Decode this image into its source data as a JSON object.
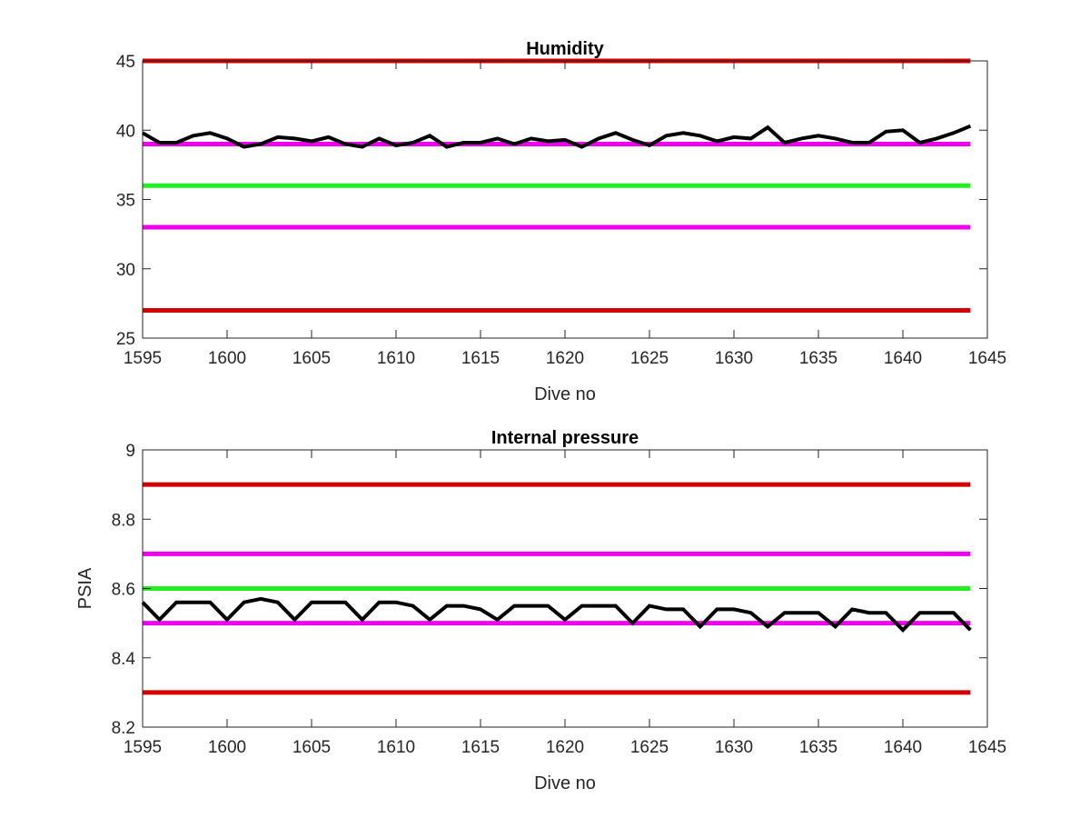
{
  "chart_data": [
    {
      "type": "line",
      "title": "Humidity",
      "xlabel": "Dive no",
      "ylabel": "",
      "xlim": [
        1595,
        1645
      ],
      "ylim": [
        25,
        45
      ],
      "xticks": [
        1595,
        1600,
        1605,
        1610,
        1615,
        1620,
        1625,
        1630,
        1635,
        1640,
        1645
      ],
      "yticks": [
        25,
        30,
        35,
        40,
        45
      ],
      "grid": false,
      "reference_lines": [
        {
          "y": 45,
          "color": "#d40000"
        },
        {
          "y": 39,
          "color": "#ee00ee"
        },
        {
          "y": 36,
          "color": "#22ee22"
        },
        {
          "y": 33,
          "color": "#ee00ee"
        },
        {
          "y": 27,
          "color": "#d40000"
        }
      ],
      "series": [
        {
          "color": "#000000",
          "x": [
            1595,
            1596,
            1597,
            1598,
            1599,
            1600,
            1601,
            1602,
            1603,
            1604,
            1605,
            1606,
            1607,
            1608,
            1609,
            1610,
            1611,
            1612,
            1613,
            1614,
            1615,
            1616,
            1617,
            1618,
            1619,
            1620,
            1621,
            1622,
            1623,
            1624,
            1625,
            1626,
            1627,
            1628,
            1629,
            1630,
            1631,
            1632,
            1633,
            1634,
            1635,
            1636,
            1637,
            1638,
            1639,
            1640,
            1641,
            1642,
            1643,
            1644
          ],
          "y": [
            39.8,
            39.1,
            39.1,
            39.6,
            39.8,
            39.4,
            38.8,
            39.0,
            39.5,
            39.4,
            39.2,
            39.5,
            39.0,
            38.8,
            39.4,
            38.9,
            39.1,
            39.6,
            38.8,
            39.1,
            39.1,
            39.4,
            39.0,
            39.4,
            39.2,
            39.3,
            38.8,
            39.4,
            39.8,
            39.3,
            38.9,
            39.6,
            39.8,
            39.6,
            39.2,
            39.5,
            39.4,
            40.2,
            39.1,
            39.4,
            39.6,
            39.4,
            39.1,
            39.1,
            39.9,
            40.0,
            39.1,
            39.4,
            39.8,
            40.3
          ]
        }
      ]
    },
    {
      "type": "line",
      "title": "Internal pressure",
      "xlabel": "Dive no",
      "ylabel": "PSIA",
      "xlim": [
        1595,
        1645
      ],
      "ylim": [
        8.2,
        9
      ],
      "xticks": [
        1595,
        1600,
        1605,
        1610,
        1615,
        1620,
        1625,
        1630,
        1635,
        1640,
        1645
      ],
      "yticks": [
        8.2,
        8.4,
        8.6,
        8.8,
        9
      ],
      "grid": false,
      "reference_lines": [
        {
          "y": 8.9,
          "color": "#d40000"
        },
        {
          "y": 8.7,
          "color": "#ee00ee"
        },
        {
          "y": 8.6,
          "color": "#22ee22"
        },
        {
          "y": 8.5,
          "color": "#ee00ee"
        },
        {
          "y": 8.3,
          "color": "#d40000"
        }
      ],
      "series": [
        {
          "color": "#000000",
          "x": [
            1595,
            1596,
            1597,
            1598,
            1599,
            1600,
            1601,
            1602,
            1603,
            1604,
            1605,
            1606,
            1607,
            1608,
            1609,
            1610,
            1611,
            1612,
            1613,
            1614,
            1615,
            1616,
            1617,
            1618,
            1619,
            1620,
            1621,
            1622,
            1623,
            1624,
            1625,
            1626,
            1627,
            1628,
            1629,
            1630,
            1631,
            1632,
            1633,
            1634,
            1635,
            1636,
            1637,
            1638,
            1639,
            1640,
            1641,
            1642,
            1643,
            1644
          ],
          "y": [
            8.56,
            8.51,
            8.56,
            8.56,
            8.56,
            8.51,
            8.56,
            8.57,
            8.56,
            8.51,
            8.56,
            8.56,
            8.56,
            8.51,
            8.56,
            8.56,
            8.55,
            8.51,
            8.55,
            8.55,
            8.54,
            8.51,
            8.55,
            8.55,
            8.55,
            8.51,
            8.55,
            8.55,
            8.55,
            8.5,
            8.55,
            8.54,
            8.54,
            8.49,
            8.54,
            8.54,
            8.53,
            8.49,
            8.53,
            8.53,
            8.53,
            8.49,
            8.54,
            8.53,
            8.53,
            8.48,
            8.53,
            8.53,
            8.53,
            8.48
          ]
        }
      ]
    }
  ]
}
